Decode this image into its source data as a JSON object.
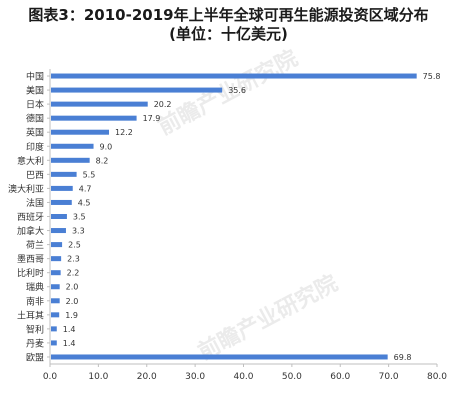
{
  "title_line1": "图表3：2010-2019年上半年全球可再生能源投资区域分布",
  "title_line2": "(单位：十亿美元)",
  "watermark": "前瞻产业研究院",
  "colors": {
    "bar": "#4A7FD4",
    "axis": "#bfbfbf",
    "text": "#333333"
  },
  "chart_data": {
    "type": "bar",
    "orientation": "horizontal",
    "title": "图表3：2010-2019年上半年全球可再生能源投资区域分布 (单位：十亿美元)",
    "categories": [
      "中国",
      "美国",
      "日本",
      "德国",
      "英国",
      "印度",
      "意大利",
      "巴西",
      "澳大利亚",
      "法国",
      "西班牙",
      "加拿大",
      "荷兰",
      "墨西哥",
      "比利时",
      "瑞典",
      "南非",
      "土耳其",
      "智利",
      "丹麦",
      "欧盟"
    ],
    "values": [
      75.8,
      35.6,
      20.2,
      17.9,
      12.2,
      9.0,
      8.2,
      5.5,
      4.7,
      4.5,
      3.5,
      3.3,
      2.5,
      2.3,
      2.2,
      2.0,
      2.0,
      1.9,
      1.4,
      1.4,
      69.8
    ],
    "value_labels": [
      "75.8",
      "35.6",
      "20.2",
      "17.9",
      "12.2",
      "9.0",
      "8.2",
      "5.5",
      "4.7",
      "4.5",
      "3.5",
      "3.3",
      "2.5",
      "2.3",
      "2.2",
      "2.0",
      "2.0",
      "1.9",
      "1.4",
      "1.4",
      "69.8"
    ],
    "xlim": [
      0,
      80
    ],
    "xticks": [
      "0.0",
      "10.0",
      "20.0",
      "30.0",
      "40.0",
      "50.0",
      "60.0",
      "70.0",
      "80.0"
    ],
    "grid": false,
    "legend": "none"
  }
}
